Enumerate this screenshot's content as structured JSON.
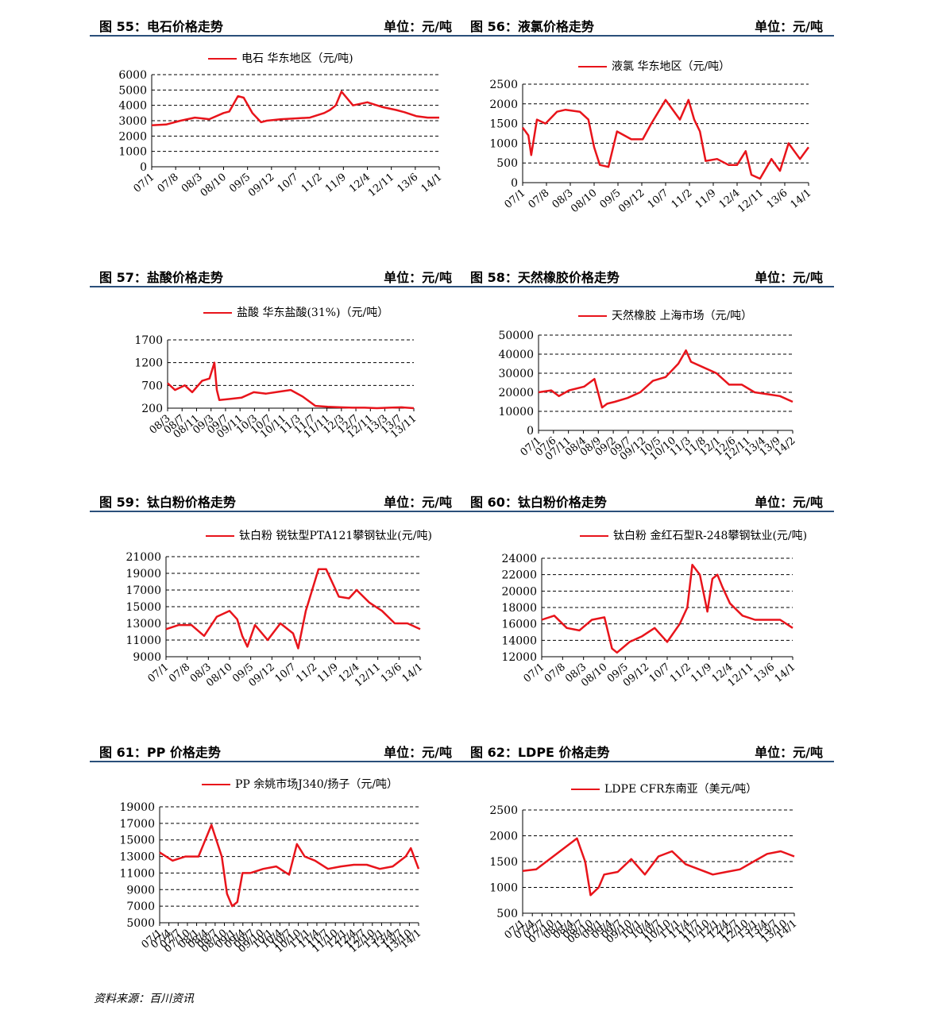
{
  "colors": {
    "series": "#e8141b",
    "header_rule": "#2a4f7a",
    "grid": "#000000"
  },
  "source": "资料来源：百川资讯",
  "charts": [
    {
      "fig_title": "图 55：电石价格走势",
      "unit": "单位：元/吨",
      "chart_data": {
        "type": "line",
        "series_name": "电石 华东地区（元/吨)",
        "ylim": [
          0,
          6000
        ],
        "yticks": [
          0,
          1000,
          2000,
          3000,
          4000,
          5000,
          6000
        ],
        "xticks": [
          "07/1",
          "07/8",
          "08/3",
          "08/10",
          "09/5",
          "09/12",
          "10/7",
          "11/2",
          "11/9",
          "12/4",
          "12/11",
          "13/6",
          "14/1"
        ],
        "x": [
          0,
          0.05,
          0.1,
          0.15,
          0.2,
          0.25,
          0.27,
          0.3,
          0.32,
          0.35,
          0.38,
          0.4,
          0.45,
          0.5,
          0.55,
          0.6,
          0.62,
          0.64,
          0.66,
          0.7,
          0.75,
          0.8,
          0.85,
          0.88,
          0.92,
          0.96,
          1.0
        ],
        "values": [
          2700,
          2750,
          3000,
          3200,
          3100,
          3500,
          3600,
          4600,
          4500,
          3500,
          2900,
          3000,
          3100,
          3150,
          3200,
          3500,
          3700,
          4000,
          4900,
          4000,
          4200,
          3900,
          3700,
          3550,
          3300,
          3200,
          3200
        ]
      }
    },
    {
      "fig_title": "图 56：液氯价格走势",
      "unit": "单位：元/吨",
      "chart_data": {
        "type": "line",
        "series_name": "液氯 华东地区（元/吨）",
        "ylim": [
          0,
          2500
        ],
        "yticks": [
          0,
          500,
          1000,
          1500,
          2000,
          2500
        ],
        "xticks": [
          "07/1",
          "07/8",
          "08/3",
          "08/10",
          "09/5",
          "09/12",
          "10/7",
          "11/2",
          "11/9",
          "12/4",
          "12/11",
          "13/6",
          "14/1"
        ],
        "x": [
          0,
          0.02,
          0.03,
          0.05,
          0.08,
          0.12,
          0.15,
          0.2,
          0.23,
          0.25,
          0.27,
          0.3,
          0.33,
          0.38,
          0.42,
          0.45,
          0.5,
          0.55,
          0.58,
          0.6,
          0.62,
          0.64,
          0.68,
          0.72,
          0.75,
          0.78,
          0.8,
          0.83,
          0.87,
          0.9,
          0.93,
          0.95,
          0.97,
          1.0
        ],
        "values": [
          1400,
          1200,
          700,
          1600,
          1500,
          1800,
          1850,
          1800,
          1600,
          900,
          450,
          400,
          1300,
          1100,
          1100,
          1500,
          2100,
          1600,
          2100,
          1600,
          1300,
          550,
          600,
          450,
          450,
          800,
          200,
          100,
          600,
          300,
          1000,
          800,
          600,
          900
        ]
      }
    },
    {
      "fig_title": "图 57：盐酸价格走势",
      "unit": "单位：元/吨",
      "chart_data": {
        "type": "line",
        "series_name": "盐酸 华东盐酸(31%)（元/吨）",
        "ylim": [
          200,
          1700
        ],
        "yticks": [
          200,
          700,
          1200,
          1700
        ],
        "xticks": [
          "08/3",
          "08/7",
          "08/11",
          "09/3",
          "09/7",
          "09/11",
          "10/3",
          "10/7",
          "10/11",
          "11/3",
          "11/7",
          "11/11",
          "12/3",
          "12/7",
          "12/11",
          "13/3",
          "13/7",
          "13/11"
        ],
        "x": [
          0,
          0.03,
          0.07,
          0.1,
          0.14,
          0.17,
          0.19,
          0.2,
          0.21,
          0.25,
          0.3,
          0.35,
          0.4,
          0.45,
          0.5,
          0.55,
          0.6,
          0.65,
          0.7,
          0.75,
          0.8,
          0.85,
          0.9,
          0.95,
          1.0
        ],
        "values": [
          750,
          600,
          700,
          550,
          800,
          850,
          1200,
          600,
          380,
          400,
          430,
          550,
          520,
          560,
          600,
          450,
          250,
          230,
          220,
          210,
          210,
          200,
          210,
          220,
          200
        ]
      }
    },
    {
      "fig_title": "图 58：天然橡胶价格走势",
      "unit": "单位：元/吨",
      "chart_data": {
        "type": "line",
        "series_name": "天然橡胶 上海市场（元/吨）",
        "ylim": [
          0,
          50000
        ],
        "yticks": [
          0,
          10000,
          20000,
          30000,
          40000,
          50000
        ],
        "xticks": [
          "07/1",
          "07/6",
          "07/11",
          "08/4",
          "08/9",
          "09/2",
          "09/7",
          "09/12",
          "10/5",
          "10/10",
          "11/3",
          "11/8",
          "12/1",
          "12/6",
          "12/11",
          "13/4",
          "13/9",
          "14/2"
        ],
        "x": [
          0,
          0.05,
          0.08,
          0.12,
          0.18,
          0.22,
          0.25,
          0.27,
          0.3,
          0.35,
          0.4,
          0.45,
          0.5,
          0.55,
          0.58,
          0.6,
          0.65,
          0.7,
          0.75,
          0.8,
          0.85,
          0.9,
          0.95,
          1.0
        ],
        "values": [
          20000,
          21000,
          18000,
          21000,
          23000,
          27000,
          12000,
          14000,
          15000,
          17000,
          20000,
          26000,
          28000,
          35000,
          42000,
          36000,
          33000,
          30000,
          24000,
          24000,
          20000,
          19000,
          18000,
          15000
        ]
      }
    },
    {
      "fig_title": "图 59：钛白粉价格走势",
      "unit": "单位：元/吨",
      "chart_data": {
        "type": "line",
        "series_name": "钛白粉 锐钛型PTA121攀钢钛业(元/吨)",
        "ylim": [
          9000,
          21000
        ],
        "yticks": [
          9000,
          11000,
          13000,
          15000,
          17000,
          19000,
          21000
        ],
        "xticks": [
          "07/1",
          "07/8",
          "08/3",
          "08/10",
          "09/5",
          "09/12",
          "10/7",
          "11/2",
          "11/9",
          "12/4",
          "12/11",
          "13/6",
          "14/1"
        ],
        "x": [
          0,
          0.05,
          0.1,
          0.15,
          0.2,
          0.25,
          0.28,
          0.3,
          0.32,
          0.35,
          0.4,
          0.45,
          0.5,
          0.52,
          0.55,
          0.6,
          0.63,
          0.68,
          0.72,
          0.75,
          0.8,
          0.85,
          0.9,
          0.95,
          1.0
        ],
        "values": [
          12300,
          12800,
          12800,
          11500,
          13800,
          14500,
          13500,
          11500,
          10200,
          12800,
          11000,
          13000,
          11800,
          10000,
          14500,
          19500,
          19500,
          16200,
          16000,
          17000,
          15500,
          14500,
          13000,
          13000,
          12300
        ]
      }
    },
    {
      "fig_title": "图 60：钛白粉价格走势",
      "unit": "单位：元/吨",
      "chart_data": {
        "type": "line",
        "series_name": "钛白粉 金红石型R-248攀钢钛业(元/吨)",
        "ylim": [
          12000,
          24000
        ],
        "yticks": [
          12000,
          14000,
          16000,
          18000,
          20000,
          22000,
          24000
        ],
        "xticks": [
          "07/1",
          "07/8",
          "08/3",
          "08/10",
          "09/5",
          "09/12",
          "10/7",
          "11/2",
          "11/9",
          "12/4",
          "12/11",
          "13/6",
          "14/1"
        ],
        "x": [
          0,
          0.05,
          0.1,
          0.15,
          0.2,
          0.25,
          0.28,
          0.3,
          0.35,
          0.4,
          0.45,
          0.5,
          0.55,
          0.58,
          0.6,
          0.63,
          0.66,
          0.68,
          0.7,
          0.72,
          0.75,
          0.8,
          0.85,
          0.9,
          0.95,
          1.0
        ],
        "values": [
          16500,
          17000,
          15500,
          15200,
          16500,
          16800,
          13000,
          12500,
          13800,
          14500,
          15500,
          13800,
          16000,
          18000,
          23200,
          22000,
          17500,
          21500,
          22000,
          20500,
          18500,
          17000,
          16500,
          16500,
          16500,
          15500
        ]
      }
    },
    {
      "fig_title": "图 61：PP 价格走势",
      "unit": "单位：元/吨",
      "chart_data": {
        "type": "line",
        "series_name": "PP 余姚市场J340/扬子（元/吨）",
        "ylim": [
          5000,
          19000
        ],
        "yticks": [
          5000,
          7000,
          9000,
          11000,
          13000,
          15000,
          17000,
          19000
        ],
        "xticks": [
          "07/1",
          "07/4",
          "07/7",
          "07/10",
          "08/1",
          "08/4",
          "08/7",
          "08/10",
          "09/1",
          "09/4",
          "09/7",
          "09/10",
          "10/1",
          "10/4",
          "10/7",
          "10/10",
          "11/1",
          "11/4",
          "11/7",
          "11/10",
          "12/1",
          "12/4",
          "12/7",
          "12/10",
          "13/1",
          "13/4",
          "13/7",
          "13/10",
          "14/1"
        ],
        "x": [
          0,
          0.05,
          0.1,
          0.15,
          0.2,
          0.24,
          0.26,
          0.28,
          0.3,
          0.32,
          0.35,
          0.4,
          0.45,
          0.5,
          0.53,
          0.56,
          0.6,
          0.65,
          0.7,
          0.75,
          0.8,
          0.85,
          0.9,
          0.95,
          0.97,
          1.0
        ],
        "values": [
          13500,
          12500,
          13000,
          13000,
          16800,
          13000,
          8500,
          7000,
          7500,
          11000,
          11000,
          11500,
          11800,
          10800,
          14500,
          13000,
          12500,
          11500,
          11800,
          12000,
          12000,
          11500,
          11800,
          13000,
          14000,
          11500
        ]
      }
    },
    {
      "fig_title": "图 62：LDPE 价格走势",
      "unit": "单位：元/吨",
      "chart_data": {
        "type": "line",
        "series_name": "LDPE CFR东南亚（美元/吨）",
        "ylim": [
          500,
          2500
        ],
        "yticks": [
          500,
          1000,
          1500,
          2000,
          2500
        ],
        "xticks": [
          "07/1",
          "07/4",
          "07/7",
          "07/10",
          "08/1",
          "08/4",
          "08/7",
          "08/10",
          "09/1",
          "09/4",
          "09/7",
          "09/10",
          "10/1",
          "10/4",
          "10/7",
          "10/10",
          "11/1",
          "11/4",
          "11/7",
          "11/10",
          "12/1",
          "12/4",
          "12/7",
          "12/10",
          "13/1",
          "13/4",
          "13/7",
          "13/10",
          "14/1"
        ],
        "x": [
          0,
          0.05,
          0.1,
          0.15,
          0.2,
          0.23,
          0.25,
          0.28,
          0.3,
          0.35,
          0.4,
          0.45,
          0.5,
          0.55,
          0.6,
          0.65,
          0.7,
          0.75,
          0.8,
          0.85,
          0.9,
          0.95,
          1.0
        ],
        "values": [
          1320,
          1350,
          1550,
          1750,
          1950,
          1500,
          850,
          1000,
          1250,
          1300,
          1550,
          1250,
          1600,
          1700,
          1450,
          1350,
          1250,
          1300,
          1350,
          1500,
          1650,
          1700,
          1600
        ]
      }
    }
  ]
}
